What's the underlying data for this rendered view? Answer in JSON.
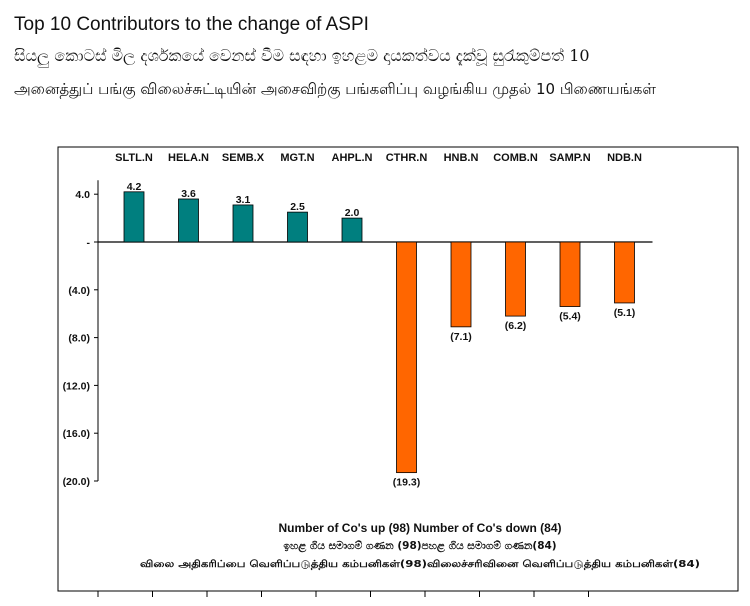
{
  "titles": {
    "english": "Top 10 Contributors to the change of ASPI",
    "sinhala": "සියලු කොටස් මිල දර්ශකයේ වෙනස් වීම සඳහා ඉහළම දායකත්වය දැක්වූ සුරැකුම්පත් 10",
    "tamil": "அனைத்துப் பங்கு விலைச்சுட்டியின் அசைவிற்கு பங்களிப்பு வழங்கிய முதல் 10 பிணையங்கள்"
  },
  "colors": {
    "up": "#007F7F",
    "down": "#FF6600"
  },
  "chart_data": {
    "type": "bar",
    "categories": [
      "SLTL.N",
      "HELA.N",
      "SEMB.X",
      "MGT.N",
      "AHPL.N",
      "CTHR.N",
      "HNB.N",
      "COMB.N",
      "SAMP.N",
      "NDB.N"
    ],
    "values": [
      4.2,
      3.6,
      3.1,
      2.5,
      2.0,
      -19.3,
      -7.1,
      -6.2,
      -5.4,
      -5.1
    ],
    "data_labels": [
      "4.2",
      "3.6",
      "3.1",
      "2.5",
      "2.0",
      "(19.3)",
      "(7.1)",
      "(6.2)",
      "(5.4)",
      "(5.1)"
    ],
    "ylim": [
      -20,
      5
    ],
    "yticks": [
      4,
      0,
      -4,
      -8,
      -12,
      -16,
      -20
    ],
    "ytick_labels": [
      "4.0",
      "-",
      "(4.0)",
      "(8.0)",
      "(12.0)",
      "(16.0)",
      "(20.0)"
    ],
    "footer": {
      "english": "Number of Co's up (98) Number of Co's down  (84)",
      "sinhala": "ඉහළ ගිය සමාගම් ගණන (98)පහළ ගිය සමාගම් ගණන(84)",
      "tamil": "விலை அதிகரிப்பை வெளிப்படுத்திய கம்பனிகள்(98)விலைச்சரிவினை வெளிப்படுத்திய கம்பனிகள்(84)"
    }
  }
}
